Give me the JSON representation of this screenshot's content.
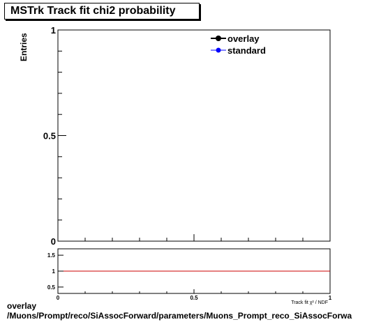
{
  "title": "MSTrk Track fit chi2 probability",
  "footer": {
    "line1": "overlay",
    "line2": "/Muons/Prompt/reco/SiAssocForward/parameters/Muons_Prompt_reco_SiAssocForwa"
  },
  "colors": {
    "overlay": "#000000",
    "standard": "#0000ff",
    "ratio_line": "#cc0000"
  },
  "chart_data": [
    {
      "type": "line",
      "title": "MSTrk Track fit chi2 probability",
      "ylabel": "Entries",
      "xlim": [
        0,
        1
      ],
      "ylim": [
        0,
        1
      ],
      "yticks": [
        "0",
        "0.5",
        "1"
      ],
      "grid": false,
      "legend_position": "top-right",
      "series": [
        {
          "name": "overlay",
          "x": [],
          "y": []
        },
        {
          "name": "standard",
          "x": [],
          "y": []
        }
      ]
    },
    {
      "type": "line",
      "xlabel": "Track fit χ² / NDF",
      "xlim": [
        0,
        1
      ],
      "ylim": [
        0.3,
        1.7
      ],
      "xticks": [
        "0",
        "0.5",
        "1"
      ],
      "yticks": [
        "0.5",
        "1",
        "1.5"
      ],
      "reference_line": 1,
      "series": []
    }
  ]
}
